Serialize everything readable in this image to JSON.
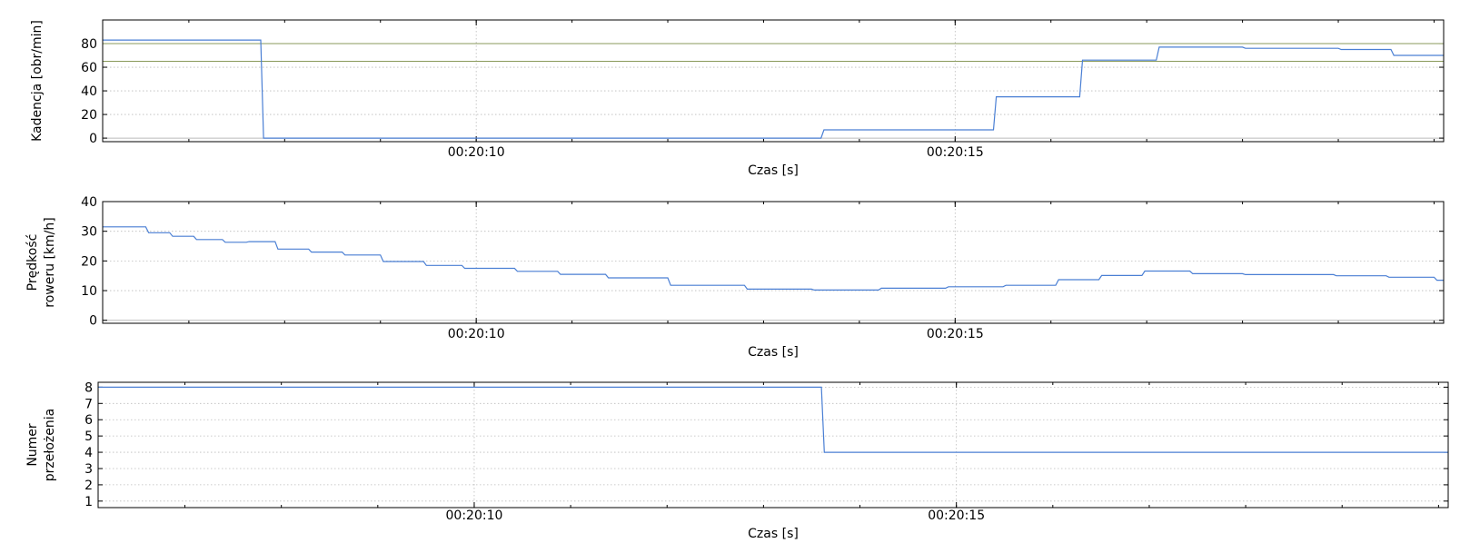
{
  "chart_data": [
    {
      "type": "line",
      "xlabel": "Czas [s]",
      "ylabel": "Kadencja [obr/min]",
      "xlim": [
        6.1,
        20.1
      ],
      "ylim": [
        -3,
        100
      ],
      "x_ticks": [
        {
          "value": 10,
          "label": "00:20:10"
        },
        {
          "value": 15,
          "label": "00:20:15"
        }
      ],
      "y_ticks": [
        0,
        20,
        40,
        60,
        80
      ],
      "grid": true,
      "reference_lines": [
        65,
        80
      ],
      "series": [
        {
          "x": [
            6.1,
            7.75,
            7.78,
            13.6,
            13.63,
            15.4,
            15.43,
            16.3,
            16.33,
            17.1,
            17.13,
            18.0,
            18.03,
            19.0,
            19.03,
            19.55,
            19.58,
            20.1
          ],
          "y": [
            83,
            83,
            0,
            0,
            7,
            7,
            35,
            35,
            66,
            66,
            77,
            77,
            76,
            76,
            75,
            75,
            70,
            70
          ]
        }
      ]
    },
    {
      "type": "line",
      "xlabel": "Czas [s]",
      "ylabel": "Prędkość roweru [km/h]",
      "xlim": [
        6.1,
        20.1
      ],
      "ylim": [
        -1,
        40
      ],
      "x_ticks": [
        {
          "value": 10,
          "label": "00:20:10"
        },
        {
          "value": 15,
          "label": "00:20:15"
        }
      ],
      "y_ticks": [
        0,
        10,
        20,
        30,
        40
      ],
      "grid": true,
      "series": [
        {
          "x": [
            6.1,
            6.55,
            6.58,
            6.8,
            6.83,
            7.05,
            7.08,
            7.35,
            7.38,
            7.6,
            7.63,
            7.9,
            7.93,
            8.25,
            8.28,
            8.6,
            8.63,
            9.0,
            9.03,
            9.45,
            9.48,
            9.85,
            9.88,
            10.4,
            10.43,
            10.85,
            10.88,
            11.35,
            11.38,
            12.0,
            12.03,
            12.8,
            12.83,
            13.5,
            13.53,
            14.2,
            14.23,
            14.9,
            14.93,
            15.5,
            15.53,
            16.05,
            16.08,
            16.5,
            16.53,
            16.95,
            16.98,
            17.45,
            17.48,
            18.0,
            18.03,
            18.95,
            18.98,
            19.5,
            19.53,
            20.0,
            20.03,
            20.1
          ],
          "y": [
            31.5,
            31.5,
            29.5,
            29.5,
            28.3,
            28.3,
            27.2,
            27.2,
            26.3,
            26.3,
            26.5,
            26.5,
            24,
            24,
            23,
            23,
            22,
            22,
            19.8,
            19.8,
            18.5,
            18.5,
            17.5,
            17.5,
            16.5,
            16.5,
            15.5,
            15.5,
            14.3,
            14.3,
            11.8,
            11.8,
            10.5,
            10.5,
            10.2,
            10.2,
            10.8,
            10.8,
            11.3,
            11.3,
            11.8,
            11.8,
            13.7,
            13.7,
            15.1,
            15.1,
            16.6,
            16.6,
            15.7,
            15.7,
            15.4,
            15.4,
            15.0,
            15.0,
            14.5,
            14.5,
            13.5,
            13.5
          ]
        }
      ]
    },
    {
      "type": "line",
      "xlabel": "Czas [s]",
      "ylabel": "Numer przełożenia",
      "xlim": [
        6.1,
        20.1
      ],
      "ylim": [
        0.6,
        8.3
      ],
      "x_ticks": [
        {
          "value": 10,
          "label": "00:20:10"
        },
        {
          "value": 15,
          "label": "00:20:15"
        }
      ],
      "y_ticks": [
        1,
        2,
        3,
        4,
        5,
        6,
        7,
        8
      ],
      "grid": true,
      "series": [
        {
          "x": [
            6.1,
            13.6,
            13.63,
            20.1
          ],
          "y": [
            8,
            8,
            4,
            4
          ]
        }
      ]
    }
  ],
  "colors": {
    "series": "#4a7fd4",
    "reference": "#8a9a5b",
    "grid": "#bbbbbb",
    "zero_line": "#bbbbbb",
    "axis": "#000000"
  }
}
